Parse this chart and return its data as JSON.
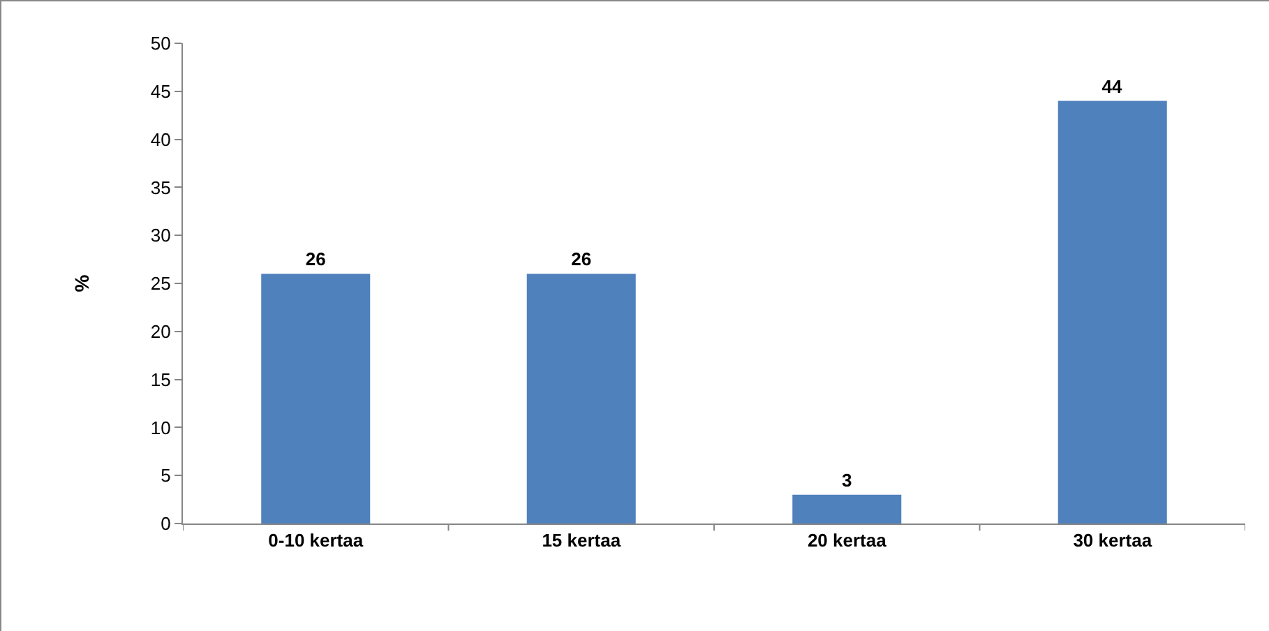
{
  "chart_data": {
    "type": "bar",
    "ylabel": "%",
    "categories": [
      "0-10 kertaa",
      "15 kertaa",
      "20 kertaa",
      "30 kertaa"
    ],
    "values": [
      26,
      26,
      3,
      44
    ],
    "color": "#4f81bd",
    "ylim": [
      0,
      50
    ],
    "yticks": [
      0,
      5,
      10,
      15,
      20,
      25,
      30,
      35,
      40,
      45,
      50
    ],
    "grid": false,
    "data_labels": true
  }
}
